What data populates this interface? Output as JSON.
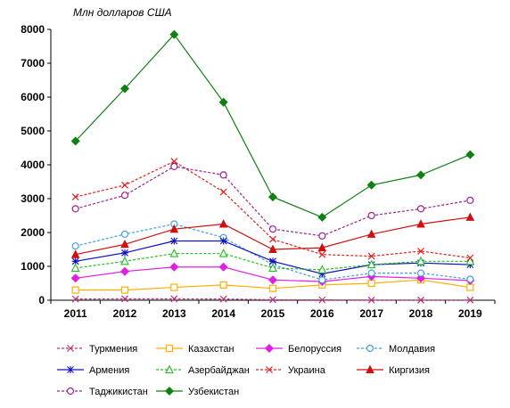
{
  "chart_data": {
    "type": "line",
    "unit_label": "Млн долларов США",
    "x": [
      "2011",
      "2012",
      "2013",
      "2014",
      "2015",
      "2016",
      "2017",
      "2018",
      "2019"
    ],
    "ylim": [
      0,
      8000
    ],
    "yticks": [
      0,
      1000,
      2000,
      3000,
      4000,
      5000,
      6000,
      7000,
      8000
    ],
    "grid": false,
    "legend_position": "bottom",
    "series": [
      {
        "name": "Туркмения",
        "color": "#c0307a",
        "dash": true,
        "marker": "x",
        "values": [
          35,
          40,
          40,
          35,
          15,
          10,
          5,
          5,
          5
        ]
      },
      {
        "name": "Казахстан",
        "color": "#ffb000",
        "dash": false,
        "marker": "square-open",
        "values": [
          300,
          300,
          380,
          450,
          350,
          450,
          500,
          600,
          380
        ]
      },
      {
        "name": "Белоруссия",
        "color": "#e020e0",
        "dash": false,
        "marker": "diamond",
        "values": [
          650,
          850,
          980,
          980,
          600,
          550,
          700,
          650,
          580
        ]
      },
      {
        "name": "Молдавия",
        "color": "#40a0e0",
        "dash": true,
        "marker": "circle-open",
        "values": [
          1600,
          1950,
          2250,
          1850,
          1050,
          600,
          800,
          800,
          620
        ]
      },
      {
        "name": "Армения",
        "color": "#1010c0",
        "dash": false,
        "marker": "star",
        "values": [
          1150,
          1400,
          1750,
          1750,
          1150,
          780,
          1050,
          1100,
          1050
        ]
      },
      {
        "name": "Азербайджан",
        "color": "#20c020",
        "dash": true,
        "marker": "triangle-open",
        "values": [
          950,
          1150,
          1380,
          1380,
          950,
          900,
          1050,
          1150,
          1150
        ]
      },
      {
        "name": "Украина",
        "color": "#e02020",
        "dash": true,
        "marker": "x",
        "values": [
          3050,
          3400,
          4100,
          3200,
          1800,
          1350,
          1300,
          1450,
          1250
        ]
      },
      {
        "name": "Киргизия",
        "color": "#d01010",
        "dash": false,
        "marker": "triangle",
        "values": [
          1350,
          1650,
          2100,
          2250,
          1500,
          1550,
          1950,
          2250,
          2450
        ]
      },
      {
        "name": "Таджикистан",
        "color": "#a02090",
        "dash": true,
        "marker": "circle-open",
        "values": [
          2700,
          3100,
          3950,
          3700,
          2100,
          1900,
          2500,
          2700,
          2950
        ]
      },
      {
        "name": "Узбекистан",
        "color": "#108010",
        "dash": false,
        "marker": "diamond",
        "values": [
          4700,
          6250,
          7850,
          5850,
          3050,
          2450,
          3400,
          3700,
          4300
        ]
      }
    ]
  }
}
